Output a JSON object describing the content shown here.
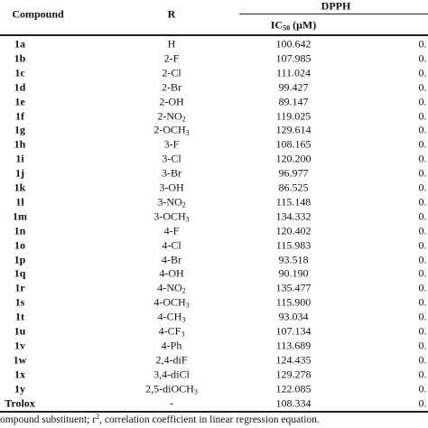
{
  "header": {
    "compound": "Compound",
    "r": "R",
    "group": "DPPH",
    "ic50": "IC50 (μM)"
  },
  "rows": [
    [
      "1a",
      "H",
      "100.642",
      "0."
    ],
    [
      "1b",
      "2-F",
      "107.985",
      "0."
    ],
    [
      "1c",
      "2-Cl",
      "111.024",
      "0."
    ],
    [
      "1d",
      "2-Br",
      "99.427",
      "0."
    ],
    [
      "1e",
      "2-OH",
      "89.147",
      "0."
    ],
    [
      "1f",
      "2-NO2",
      "119.025",
      "0."
    ],
    [
      "1g",
      "2-OCH3",
      "129.614",
      "0."
    ],
    [
      "1h",
      "3-F",
      "108.165",
      "0."
    ],
    [
      "1i",
      "3-Cl",
      "120.200",
      "0."
    ],
    [
      "1j",
      "3-Br",
      "96.977",
      "0."
    ],
    [
      "1k",
      "3-OH",
      "86.525",
      "0."
    ],
    [
      "1l",
      "3-NO2",
      "115.148",
      "0."
    ],
    [
      "1m",
      "3-OCH3",
      "134.332",
      "0."
    ],
    [
      "1n",
      "4-F",
      "120.402",
      "0."
    ],
    [
      "1o",
      "4-Cl",
      "115.983",
      "0."
    ],
    [
      "1p",
      "4-Br",
      "93.518",
      "0."
    ],
    [
      "1q",
      "4-OH",
      "90.190",
      "0."
    ],
    [
      "1r",
      "4-NO2",
      "135.477",
      "0."
    ],
    [
      "1s",
      "4-OCH3",
      "115.900",
      "0."
    ],
    [
      "1t",
      "4-CH3",
      "93.034",
      "0."
    ],
    [
      "1u",
      "4-CF3",
      "107.134",
      "0."
    ],
    [
      "1v",
      "4-Ph",
      "113.689",
      "0."
    ],
    [
      "1w",
      "2,4-diF",
      "124.435",
      "0."
    ],
    [
      "1x",
      "3,4-diCl",
      "129.278",
      "0."
    ],
    [
      "1y",
      "2,5-diOCH3",
      "122.085",
      "0."
    ],
    [
      "Trolox",
      "-",
      "108.334",
      "0."
    ]
  ],
  "footer": [
    "ompound substituent; r",
    "2",
    ", correlation coefficient in linear regression equation."
  ]
}
